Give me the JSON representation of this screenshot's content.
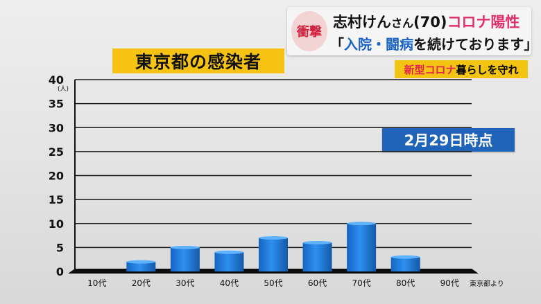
{
  "news": {
    "tag": "衝撃",
    "headline_name": "志村けん",
    "headline_honorific": "さん",
    "headline_age": "(70)",
    "headline_highlight": "コロナ陽性",
    "quote_open": "「",
    "quote_part1": "入院・闘病",
    "quote_part2": "を続けております」"
  },
  "sub_banner": {
    "part1": "新型コロナ",
    "part2": " 暮らしを守れ"
  },
  "date_badge": "2月29日時点",
  "source": "東京都より",
  "chart_data": {
    "type": "bar",
    "title": "東京都の感染者",
    "y_unit": "(人)",
    "categories": [
      "10代",
      "20代",
      "30代",
      "40代",
      "50代",
      "60代",
      "70代",
      "80代",
      "90代"
    ],
    "values": [
      0,
      2,
      5,
      4,
      7,
      6,
      10,
      3,
      0
    ],
    "ylim": [
      0,
      40
    ],
    "yticks": [
      0,
      5,
      10,
      15,
      20,
      25,
      30,
      35,
      40
    ],
    "grid": true,
    "bar_color": "#1e7fd8",
    "bar_top_color": "#5fb2ff"
  }
}
